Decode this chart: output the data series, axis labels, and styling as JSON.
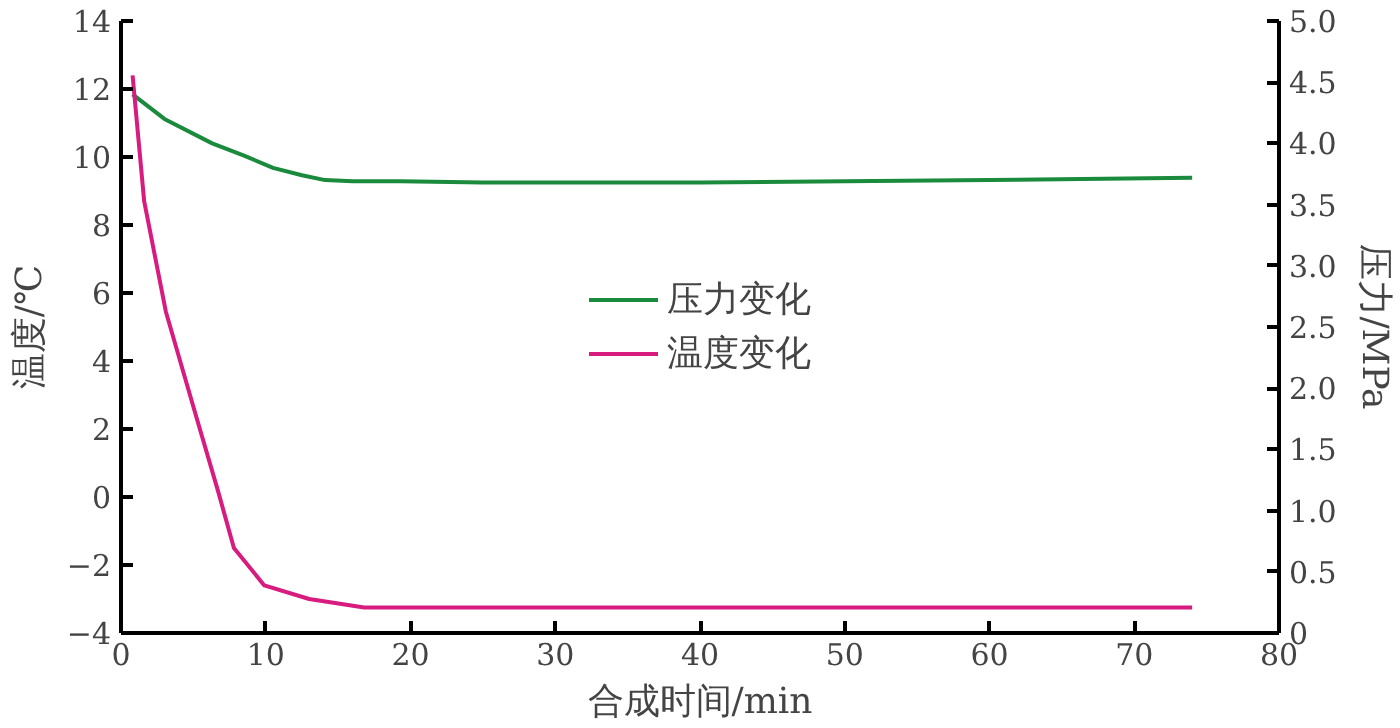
{
  "chart_data": {
    "type": "line",
    "xlabel": "合成时间/min",
    "ylabel": "温度/℃",
    "y2label": "压力/MPa",
    "xlim": [
      0,
      80
    ],
    "xticks": [
      0,
      10,
      20,
      30,
      40,
      50,
      60,
      70,
      80
    ],
    "ylim": [
      -4,
      14
    ],
    "yticks": [
      -4,
      -2,
      0,
      2,
      4,
      6,
      8,
      10,
      12,
      14
    ],
    "y2lim": [
      0,
      5
    ],
    "y2ticks": [
      0,
      0.5,
      {
        "value": 1,
        "label": "1.0"
      },
      1.5,
      {
        "value": 2,
        "label": "2.0"
      },
      2.5,
      {
        "value": 3,
        "label": "3.0"
      },
      3.5,
      {
        "value": 4,
        "label": "4.0"
      },
      4.5,
      {
        "value": 5,
        "label": "5.0"
      }
    ],
    "grid": false,
    "legend": "center",
    "marker": "none",
    "line_style": "solid",
    "series": [
      {
        "name": "压力变化",
        "color": "#1a8a3c",
        "axis": "y2",
        "x": [
          0.8,
          3,
          6.3,
          8.5,
          10.5,
          12.5,
          14.1,
          16,
          19.3,
          25,
          30,
          40,
          50,
          60,
          74
        ],
        "values": [
          4.4,
          4.2,
          4.0,
          3.9,
          3.8,
          3.74,
          3.7,
          3.69,
          3.69,
          3.68,
          3.68,
          3.68,
          3.69,
          3.7,
          3.72
        ]
      },
      {
        "name": "温度变化",
        "color": "#d81b7f",
        "x": [
          0.8,
          1.6,
          3.1,
          5.2,
          6.7,
          7.8,
          9.9,
          13,
          16.8,
          20,
          30,
          40,
          50,
          60,
          74
        ],
        "values": [
          12.4,
          8.7,
          5.45,
          2.36,
          0.18,
          -1.5,
          -2.6,
          -3.0,
          -3.25,
          -3.25,
          -3.25,
          -3.25,
          -3.25,
          -3.25,
          -3.25
        ]
      }
    ]
  }
}
